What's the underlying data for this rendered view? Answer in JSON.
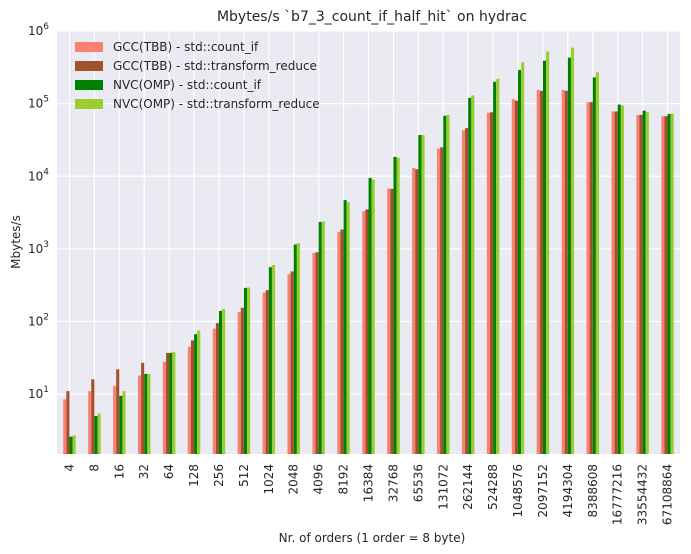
{
  "chart_data": {
    "type": "bar",
    "title": "Mbytes/s `b7_3_count_if_half_hit` on hydrac",
    "xlabel": "Nr. of orders (1 order = 8 byte)",
    "ylabel": "Mbytes/s",
    "yscale": "log",
    "ylim": [
      1.5,
      1000000
    ],
    "y_tick_exponents": [
      1,
      2,
      3,
      4,
      5,
      6
    ],
    "grid": true,
    "legend_position": "top-left",
    "background_color": "#eaeaf2",
    "categories": [
      "4",
      "8",
      "16",
      "32",
      "64",
      "128",
      "256",
      "512",
      "1024",
      "2048",
      "4096",
      "8192",
      "16384",
      "32768",
      "65536",
      "131072",
      "262144",
      "524288",
      "1048576",
      "2097152",
      "4194304",
      "8388608",
      "16777216",
      "33554432",
      "67108864"
    ],
    "series": [
      {
        "name": "GCC(TBB) - std::count_if",
        "color": "#fa8072",
        "values": [
          8.5,
          11,
          13,
          18,
          28,
          45,
          80,
          135,
          250,
          450,
          880,
          1700,
          3300,
          6800,
          13000,
          24000,
          43000,
          75000,
          115000,
          155000,
          155000,
          105000,
          78000,
          70000,
          67000
        ]
      },
      {
        "name": "GCC(TBB) - std::transform_reduce",
        "color": "#a0522d",
        "values": [
          11,
          16,
          22,
          27,
          37,
          55,
          95,
          155,
          270,
          490,
          900,
          1850,
          3500,
          6700,
          12500,
          25000,
          46000,
          76000,
          110000,
          150000,
          150000,
          105000,
          78000,
          70000,
          67000
        ]
      },
      {
        "name": "NVC(OMP) - std::count_if",
        "color": "#008000",
        "values": [
          2.6,
          5,
          9.5,
          19,
          37,
          67,
          140,
          290,
          560,
          1150,
          2350,
          4700,
          9500,
          18500,
          37000,
          68000,
          120000,
          200000,
          290000,
          390000,
          430000,
          230000,
          97000,
          80000,
          72000
        ]
      },
      {
        "name": "NVC(OMP) - std::transform_reduce",
        "color": "#9acd32",
        "values": [
          2.7,
          5.4,
          11,
          19,
          38,
          75,
          150,
          295,
          600,
          1200,
          2380,
          4400,
          9000,
          18000,
          37000,
          70000,
          130000,
          220000,
          370000,
          520000,
          590000,
          270000,
          94000,
          77000,
          73000
        ]
      }
    ]
  }
}
